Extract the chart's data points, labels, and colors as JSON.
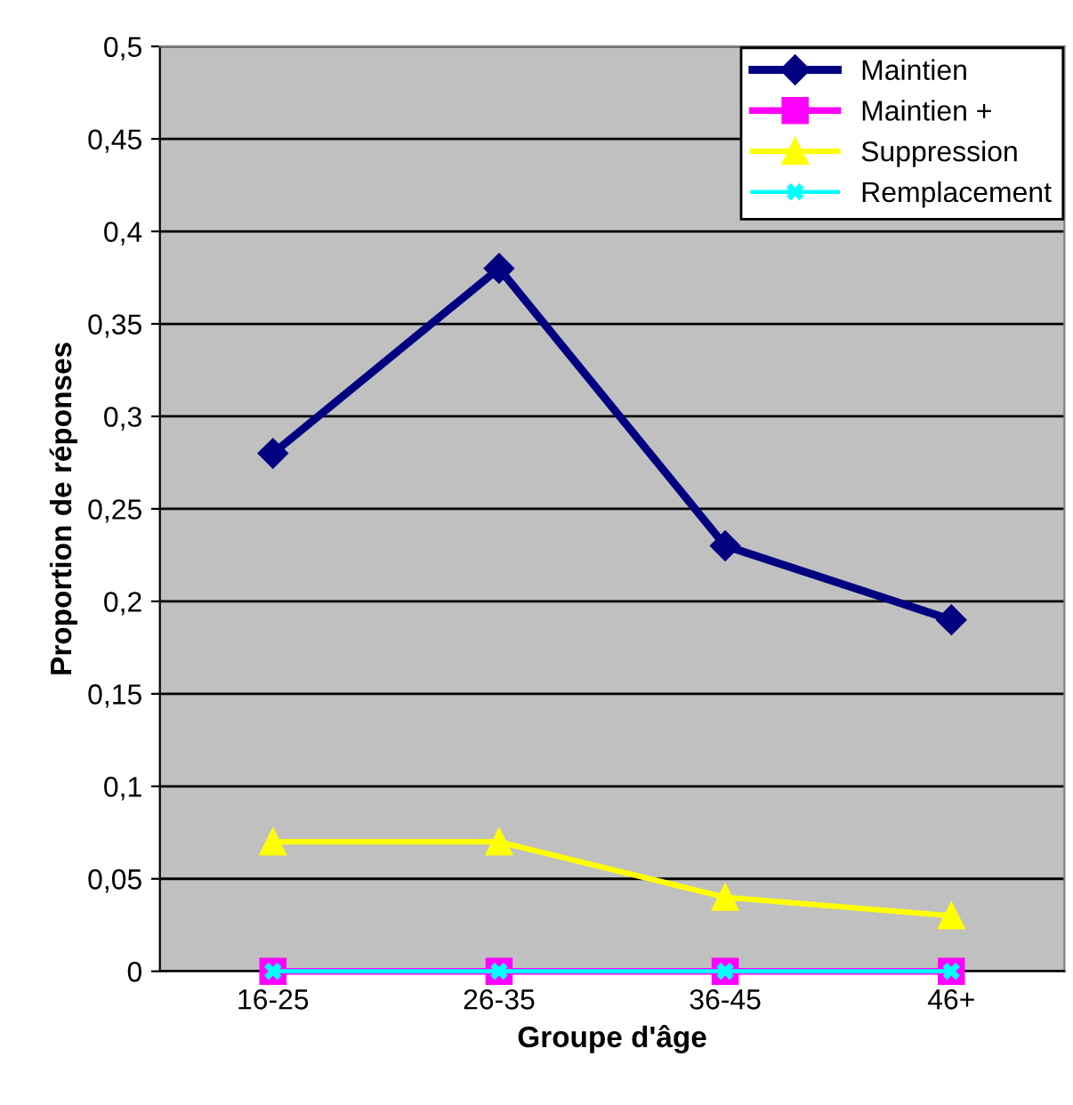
{
  "chart_data": {
    "type": "line",
    "xlabel": "Groupe d'âge",
    "ylabel": "Proportion de réponses",
    "categories": [
      "16-25",
      "26-35",
      "36-45",
      "46+"
    ],
    "series": [
      {
        "name": "Maintien",
        "color": "#000080",
        "marker": "diamond",
        "values": [
          0.28,
          0.38,
          0.23,
          0.19
        ]
      },
      {
        "name": "Maintien +",
        "color": "#ff00ff",
        "marker": "square",
        "values": [
          0,
          0,
          0,
          0
        ]
      },
      {
        "name": "Suppression",
        "color": "#ffff00",
        "marker": "triangle",
        "values": [
          0.07,
          0.07,
          0.04,
          0.03
        ]
      },
      {
        "name": "Remplacement",
        "color": "#00ffff",
        "marker": "cross",
        "values": [
          0,
          0,
          0,
          0
        ]
      }
    ],
    "ylim": [
      0,
      0.5
    ],
    "yticks": [
      {
        "value": 0,
        "label": "0"
      },
      {
        "value": 0.05,
        "label": "0,05"
      },
      {
        "value": 0.1,
        "label": "0,1"
      },
      {
        "value": 0.15,
        "label": "0,15"
      },
      {
        "value": 0.2,
        "label": "0,2"
      },
      {
        "value": 0.25,
        "label": "0,25"
      },
      {
        "value": 0.3,
        "label": "0,3"
      },
      {
        "value": 0.35,
        "label": "0,35"
      },
      {
        "value": 0.4,
        "label": "0,4"
      },
      {
        "value": 0.45,
        "label": "0,45"
      },
      {
        "value": 0.5,
        "label": "0,5"
      }
    ],
    "grid": "y",
    "legend": "top right",
    "line_style": "solid"
  }
}
